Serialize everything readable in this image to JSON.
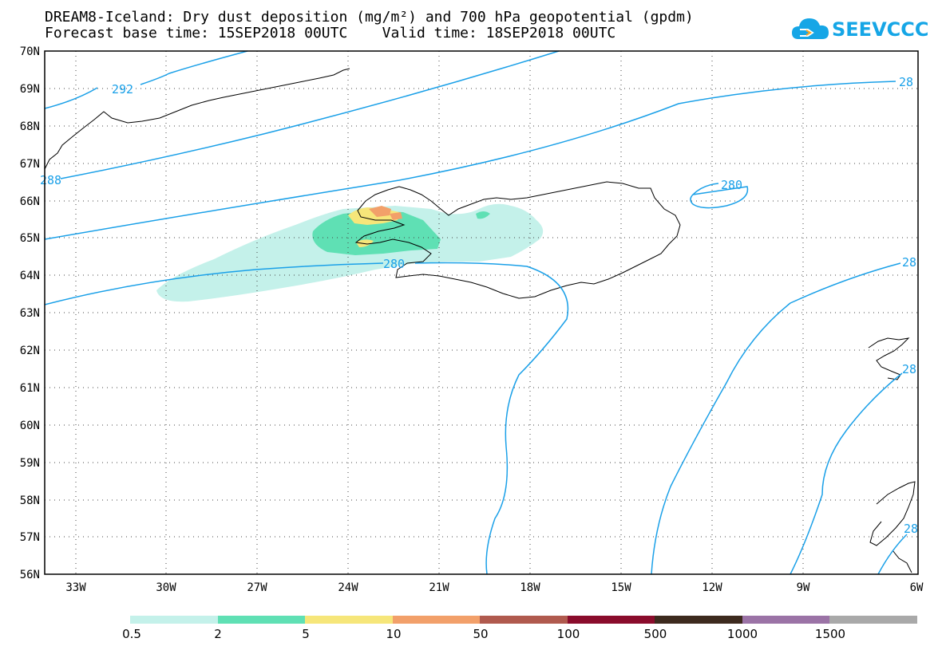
{
  "title": {
    "line1": "DREAM8-Iceland: Dry dust deposition (mg/m²) and 700 hPa geopotential (gpdm)",
    "line2": "Forecast base time: 15SEP2018 00UTC    Valid time: 18SEP2018 00UTC"
  },
  "logo": {
    "text": "SEEVCCC",
    "color": "#16a6e6"
  },
  "map": {
    "lat_labels": [
      "70N",
      "69N",
      "68N",
      "67N",
      "66N",
      "65N",
      "64N",
      "63N",
      "62N",
      "61N",
      "60N",
      "59N",
      "58N",
      "57N",
      "56N"
    ],
    "lon_labels": [
      "33W",
      "30W",
      "27W",
      "24W",
      "21W",
      "18W",
      "15W",
      "12W",
      "9W",
      "6W"
    ],
    "contour_labels": [
      "292",
      "288",
      "280",
      "280",
      "28",
      "28",
      "28",
      "28"
    ],
    "contour_color": "#1aa0e8"
  },
  "legend": {
    "labels": [
      "0.5",
      "2",
      "5",
      "10",
      "50",
      "100",
      "500",
      "1000",
      "1500"
    ],
    "colors": [
      "#c4f1ea",
      "#5fe0b4",
      "#f6e67a",
      "#f2a06a",
      "#b05a4e",
      "#8a0c2c",
      "#3d2a1e",
      "#9b73a6",
      "#a9a9a9"
    ]
  }
}
